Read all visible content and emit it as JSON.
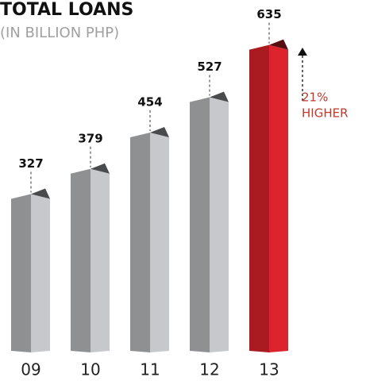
{
  "chart_data": {
    "type": "bar3d",
    "title": "TOTAL LOANS",
    "subtitle": "(IN BILLION PHP)",
    "categories": [
      "09",
      "10",
      "11",
      "12",
      "13"
    ],
    "values": [
      327,
      379,
      454,
      527,
      635
    ],
    "colors": [
      "#a3a4a6",
      "#a3a4a6",
      "#a3a4a6",
      "#a3a4a6",
      "#c01e26"
    ],
    "annotation": [
      "21%",
      "HIGHER"
    ],
    "annotation_color": "#c0392b"
  }
}
